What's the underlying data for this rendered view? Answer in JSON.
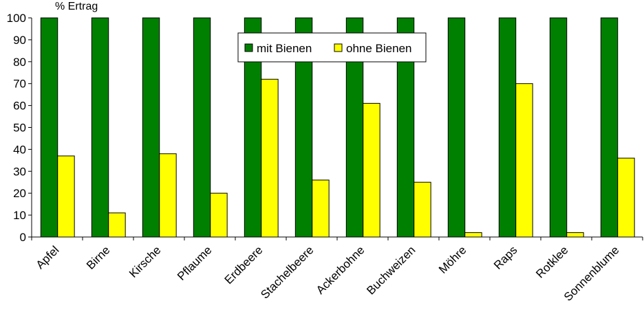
{
  "chart_data": {
    "type": "bar",
    "ylabel": "% Ertrag",
    "ylim": [
      0,
      100
    ],
    "yticks": [
      0,
      10,
      20,
      30,
      40,
      50,
      60,
      70,
      80,
      90,
      100
    ],
    "categories": [
      "Apfel",
      "Birne",
      "Kirsche",
      "Pflaume",
      "Erdbeere",
      "Stachelbeere",
      "Ackerbohne",
      "Buchweizen",
      "Möhre",
      "Raps",
      "Rotklee",
      "Sonnenblume"
    ],
    "series": [
      {
        "name": "mit Bienen",
        "color": "#008000",
        "values": [
          100,
          100,
          100,
          100,
          100,
          100,
          100,
          100,
          100,
          100,
          100,
          100
        ]
      },
      {
        "name": "ohne Bienen",
        "color": "#ffff00",
        "values": [
          37,
          11,
          38,
          20,
          72,
          26,
          61,
          25,
          2,
          70,
          2,
          36
        ]
      }
    ],
    "legend_position": "top-center",
    "grid": false
  }
}
